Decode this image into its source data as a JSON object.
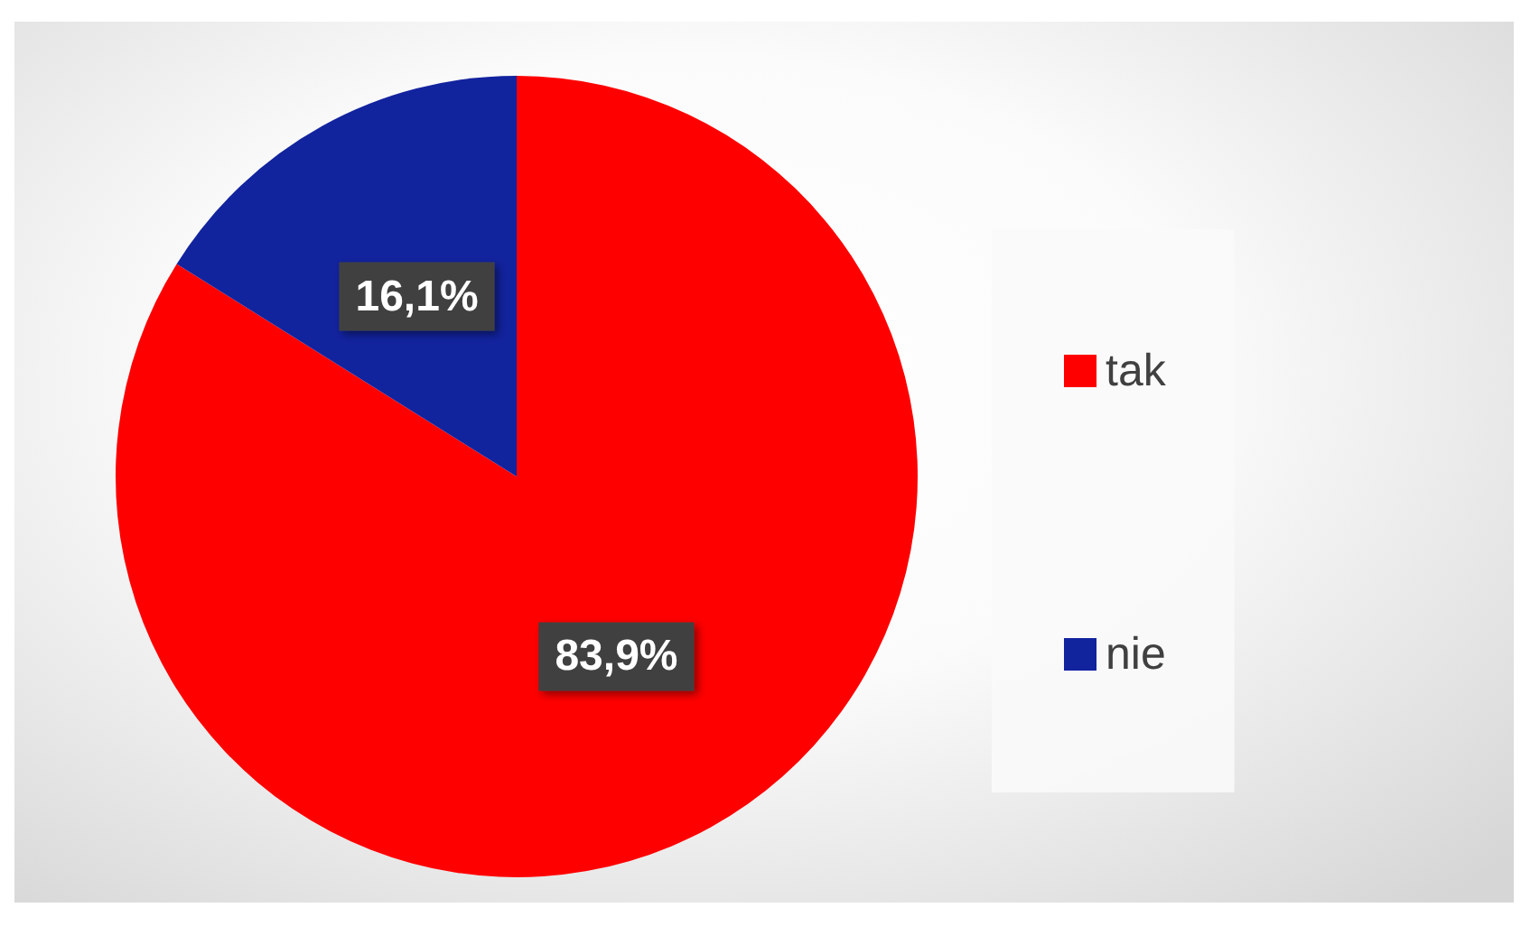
{
  "chart_data": {
    "type": "pie",
    "categories": [
      "tak",
      "nie"
    ],
    "values": [
      83.9,
      16.1
    ],
    "colors": [
      "#ff0000",
      "#12239e"
    ],
    "value_labels": [
      "83,9%",
      "16,1%"
    ],
    "legend": "right"
  }
}
